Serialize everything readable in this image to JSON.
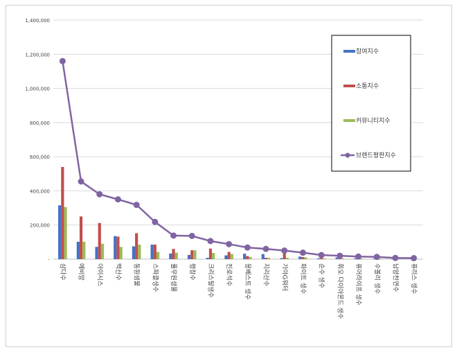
{
  "chart_data": {
    "type": "bar",
    "categories": [
      "삼다수",
      "에비앙",
      "아이시스",
      "백산수",
      "동원샘물",
      "스파클생수",
      "풀무원샘물",
      "평창수",
      "크리스탈생수",
      "진로석수",
      "몽베스트 생수",
      "지리산수",
      "가야G워터",
      "화이트 생수",
      "순수 생수",
      "휘오 다이아몬드 생수",
      "퓨어라이프 생수",
      "수볼리 생수",
      "남양천연수",
      "퓨리스 생수"
    ],
    "series": [
      {
        "name": "참여지수",
        "color": "#4472c4",
        "values": [
          315000,
          102000,
          72000,
          135000,
          75000,
          85000,
          33000,
          25000,
          8000,
          22000,
          32000,
          30000,
          6000,
          15000,
          5000,
          10000,
          5000,
          3000,
          2000,
          2000
        ]
      },
      {
        "name": "소통지수",
        "color": "#c0504d",
        "values": [
          540000,
          250000,
          212000,
          132000,
          152000,
          85000,
          60000,
          52000,
          62000,
          42000,
          18000,
          8000,
          35000,
          12000,
          8000,
          8000,
          5000,
          4000,
          3000,
          2000
        ]
      },
      {
        "name": "커뮤니티지수",
        "color": "#9bbb59",
        "values": [
          305000,
          102000,
          90000,
          72000,
          85000,
          42000,
          38000,
          52000,
          36000,
          30000,
          12000,
          8000,
          8000,
          10000,
          5000,
          5000,
          5000,
          4000,
          3000,
          2000
        ]
      },
      {
        "name": "브랜드평판지수",
        "color": "#8064a2",
        "values": [
          1160000,
          455000,
          380000,
          350000,
          318000,
          218000,
          138000,
          136000,
          106000,
          88000,
          68000,
          60000,
          50000,
          38000,
          24000,
          20000,
          15000,
          13000,
          7000,
          6000
        ]
      }
    ],
    "line_series": "브랜드평판지수",
    "ylim": [
      0,
      1400000
    ],
    "yticks": [
      "-",
      "200,000",
      "400,000",
      "600,000",
      "800,000",
      "1,000,000",
      "1,200,000",
      "1,400,000"
    ],
    "grid": true,
    "legend_position": "right"
  }
}
